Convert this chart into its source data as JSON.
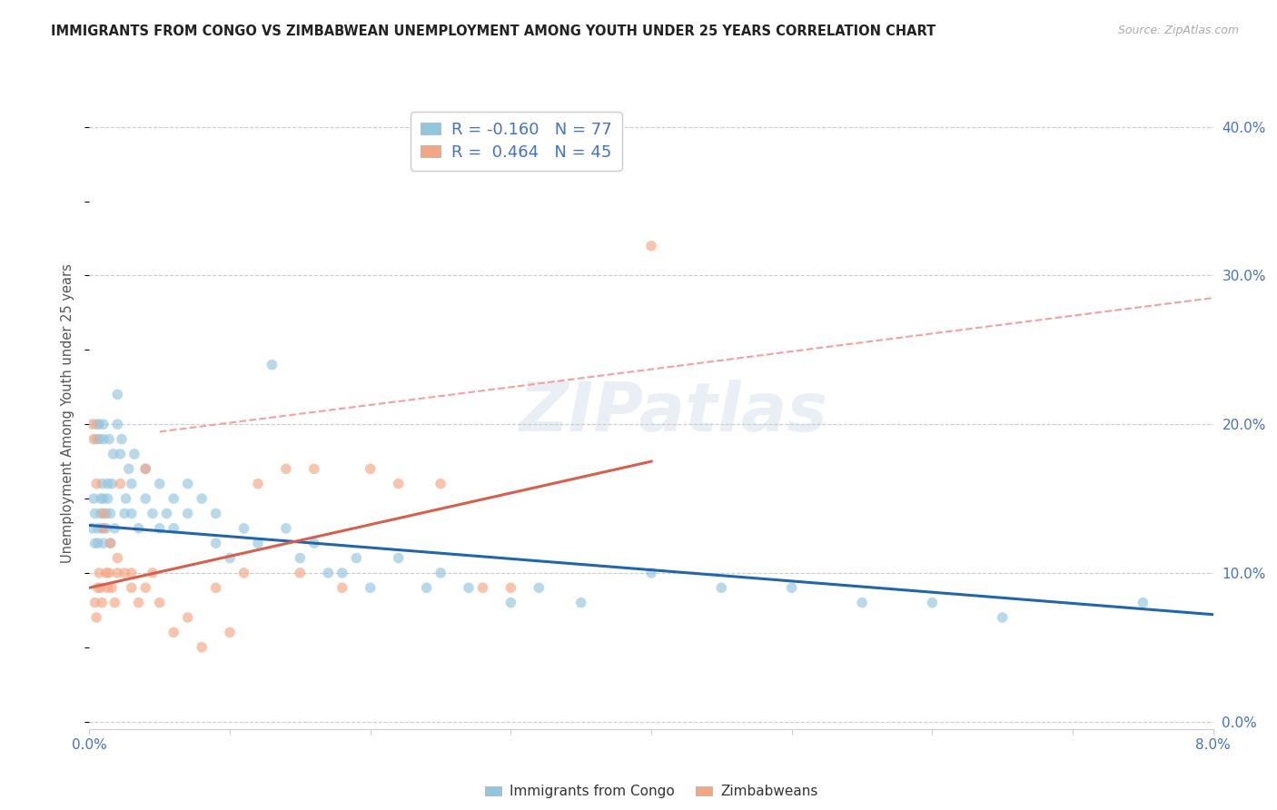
{
  "title": "IMMIGRANTS FROM CONGO VS ZIMBABWEAN UNEMPLOYMENT AMONG YOUTH UNDER 25 YEARS CORRELATION CHART",
  "source": "Source: ZipAtlas.com",
  "ylabel": "Unemployment Among Youth under 25 years",
  "ytick_values": [
    0.0,
    0.1,
    0.2,
    0.3,
    0.4
  ],
  "ytick_labels": [
    "0.0%",
    "10.0%",
    "20.0%",
    "30.0%",
    "40.0%"
  ],
  "xlim": [
    0.0,
    0.08
  ],
  "ylim": [
    -0.005,
    0.42
  ],
  "legend_entry1": "R = -0.160   N = 77",
  "legend_entry2": "R =  0.464   N = 45",
  "legend_label1": "Immigrants from Congo",
  "legend_label2": "Zimbabweans",
  "color_blue": "#92c5de",
  "color_pink": "#f4a582",
  "color_blue_line": "#2166ac",
  "color_pink_line": "#d6604d",
  "color_dashed_line": "#f4a0a0",
  "watermark_text": "ZIPatlas",
  "background_color": "#ffffff",
  "grid_color": "#cccccc",
  "blue_line_x": [
    0.0,
    0.08
  ],
  "blue_line_y": [
    0.132,
    0.072
  ],
  "pink_line_x": [
    0.0,
    0.04
  ],
  "pink_line_y": [
    0.09,
    0.175
  ],
  "dashed_line_x": [
    0.005,
    0.08
  ],
  "dashed_line_y": [
    0.195,
    0.285
  ],
  "congo_x": [
    0.0002,
    0.0003,
    0.0004,
    0.0004,
    0.0005,
    0.0005,
    0.0006,
    0.0006,
    0.0007,
    0.0007,
    0.0008,
    0.0008,
    0.0009,
    0.0009,
    0.001,
    0.001,
    0.001,
    0.001,
    0.0012,
    0.0012,
    0.0013,
    0.0013,
    0.0014,
    0.0015,
    0.0015,
    0.0016,
    0.0017,
    0.0018,
    0.002,
    0.002,
    0.0022,
    0.0023,
    0.0025,
    0.0026,
    0.0028,
    0.003,
    0.003,
    0.0032,
    0.0035,
    0.004,
    0.004,
    0.0045,
    0.005,
    0.005,
    0.0055,
    0.006,
    0.006,
    0.007,
    0.007,
    0.008,
    0.009,
    0.009,
    0.01,
    0.011,
    0.012,
    0.013,
    0.014,
    0.015,
    0.016,
    0.017,
    0.018,
    0.019,
    0.02,
    0.022,
    0.024,
    0.025,
    0.027,
    0.03,
    0.032,
    0.035,
    0.04,
    0.045,
    0.05,
    0.055,
    0.06,
    0.065,
    0.075
  ],
  "congo_y": [
    0.13,
    0.15,
    0.12,
    0.14,
    0.2,
    0.19,
    0.12,
    0.13,
    0.19,
    0.2,
    0.14,
    0.15,
    0.16,
    0.13,
    0.12,
    0.15,
    0.19,
    0.2,
    0.13,
    0.14,
    0.15,
    0.16,
    0.19,
    0.12,
    0.14,
    0.16,
    0.18,
    0.13,
    0.2,
    0.22,
    0.18,
    0.19,
    0.14,
    0.15,
    0.17,
    0.14,
    0.16,
    0.18,
    0.13,
    0.15,
    0.17,
    0.14,
    0.13,
    0.16,
    0.14,
    0.15,
    0.13,
    0.16,
    0.14,
    0.15,
    0.12,
    0.14,
    0.11,
    0.13,
    0.12,
    0.24,
    0.13,
    0.11,
    0.12,
    0.1,
    0.1,
    0.11,
    0.09,
    0.11,
    0.09,
    0.1,
    0.09,
    0.08,
    0.09,
    0.08,
    0.1,
    0.09,
    0.09,
    0.08,
    0.08,
    0.07,
    0.08
  ],
  "zimb_x": [
    0.0002,
    0.0003,
    0.0004,
    0.0005,
    0.0005,
    0.0006,
    0.0007,
    0.0008,
    0.0009,
    0.001,
    0.001,
    0.0012,
    0.0013,
    0.0014,
    0.0015,
    0.0016,
    0.0018,
    0.002,
    0.002,
    0.0022,
    0.0025,
    0.003,
    0.003,
    0.0035,
    0.004,
    0.004,
    0.0045,
    0.005,
    0.006,
    0.007,
    0.008,
    0.009,
    0.01,
    0.011,
    0.012,
    0.014,
    0.015,
    0.016,
    0.018,
    0.02,
    0.022,
    0.025,
    0.028,
    0.03,
    0.04
  ],
  "zimb_y": [
    0.2,
    0.19,
    0.08,
    0.07,
    0.16,
    0.09,
    0.1,
    0.09,
    0.08,
    0.13,
    0.14,
    0.1,
    0.09,
    0.1,
    0.12,
    0.09,
    0.08,
    0.1,
    0.11,
    0.16,
    0.1,
    0.09,
    0.1,
    0.08,
    0.09,
    0.17,
    0.1,
    0.08,
    0.06,
    0.07,
    0.05,
    0.09,
    0.06,
    0.1,
    0.16,
    0.17,
    0.1,
    0.17,
    0.09,
    0.17,
    0.16,
    0.16,
    0.09,
    0.09,
    0.32
  ]
}
